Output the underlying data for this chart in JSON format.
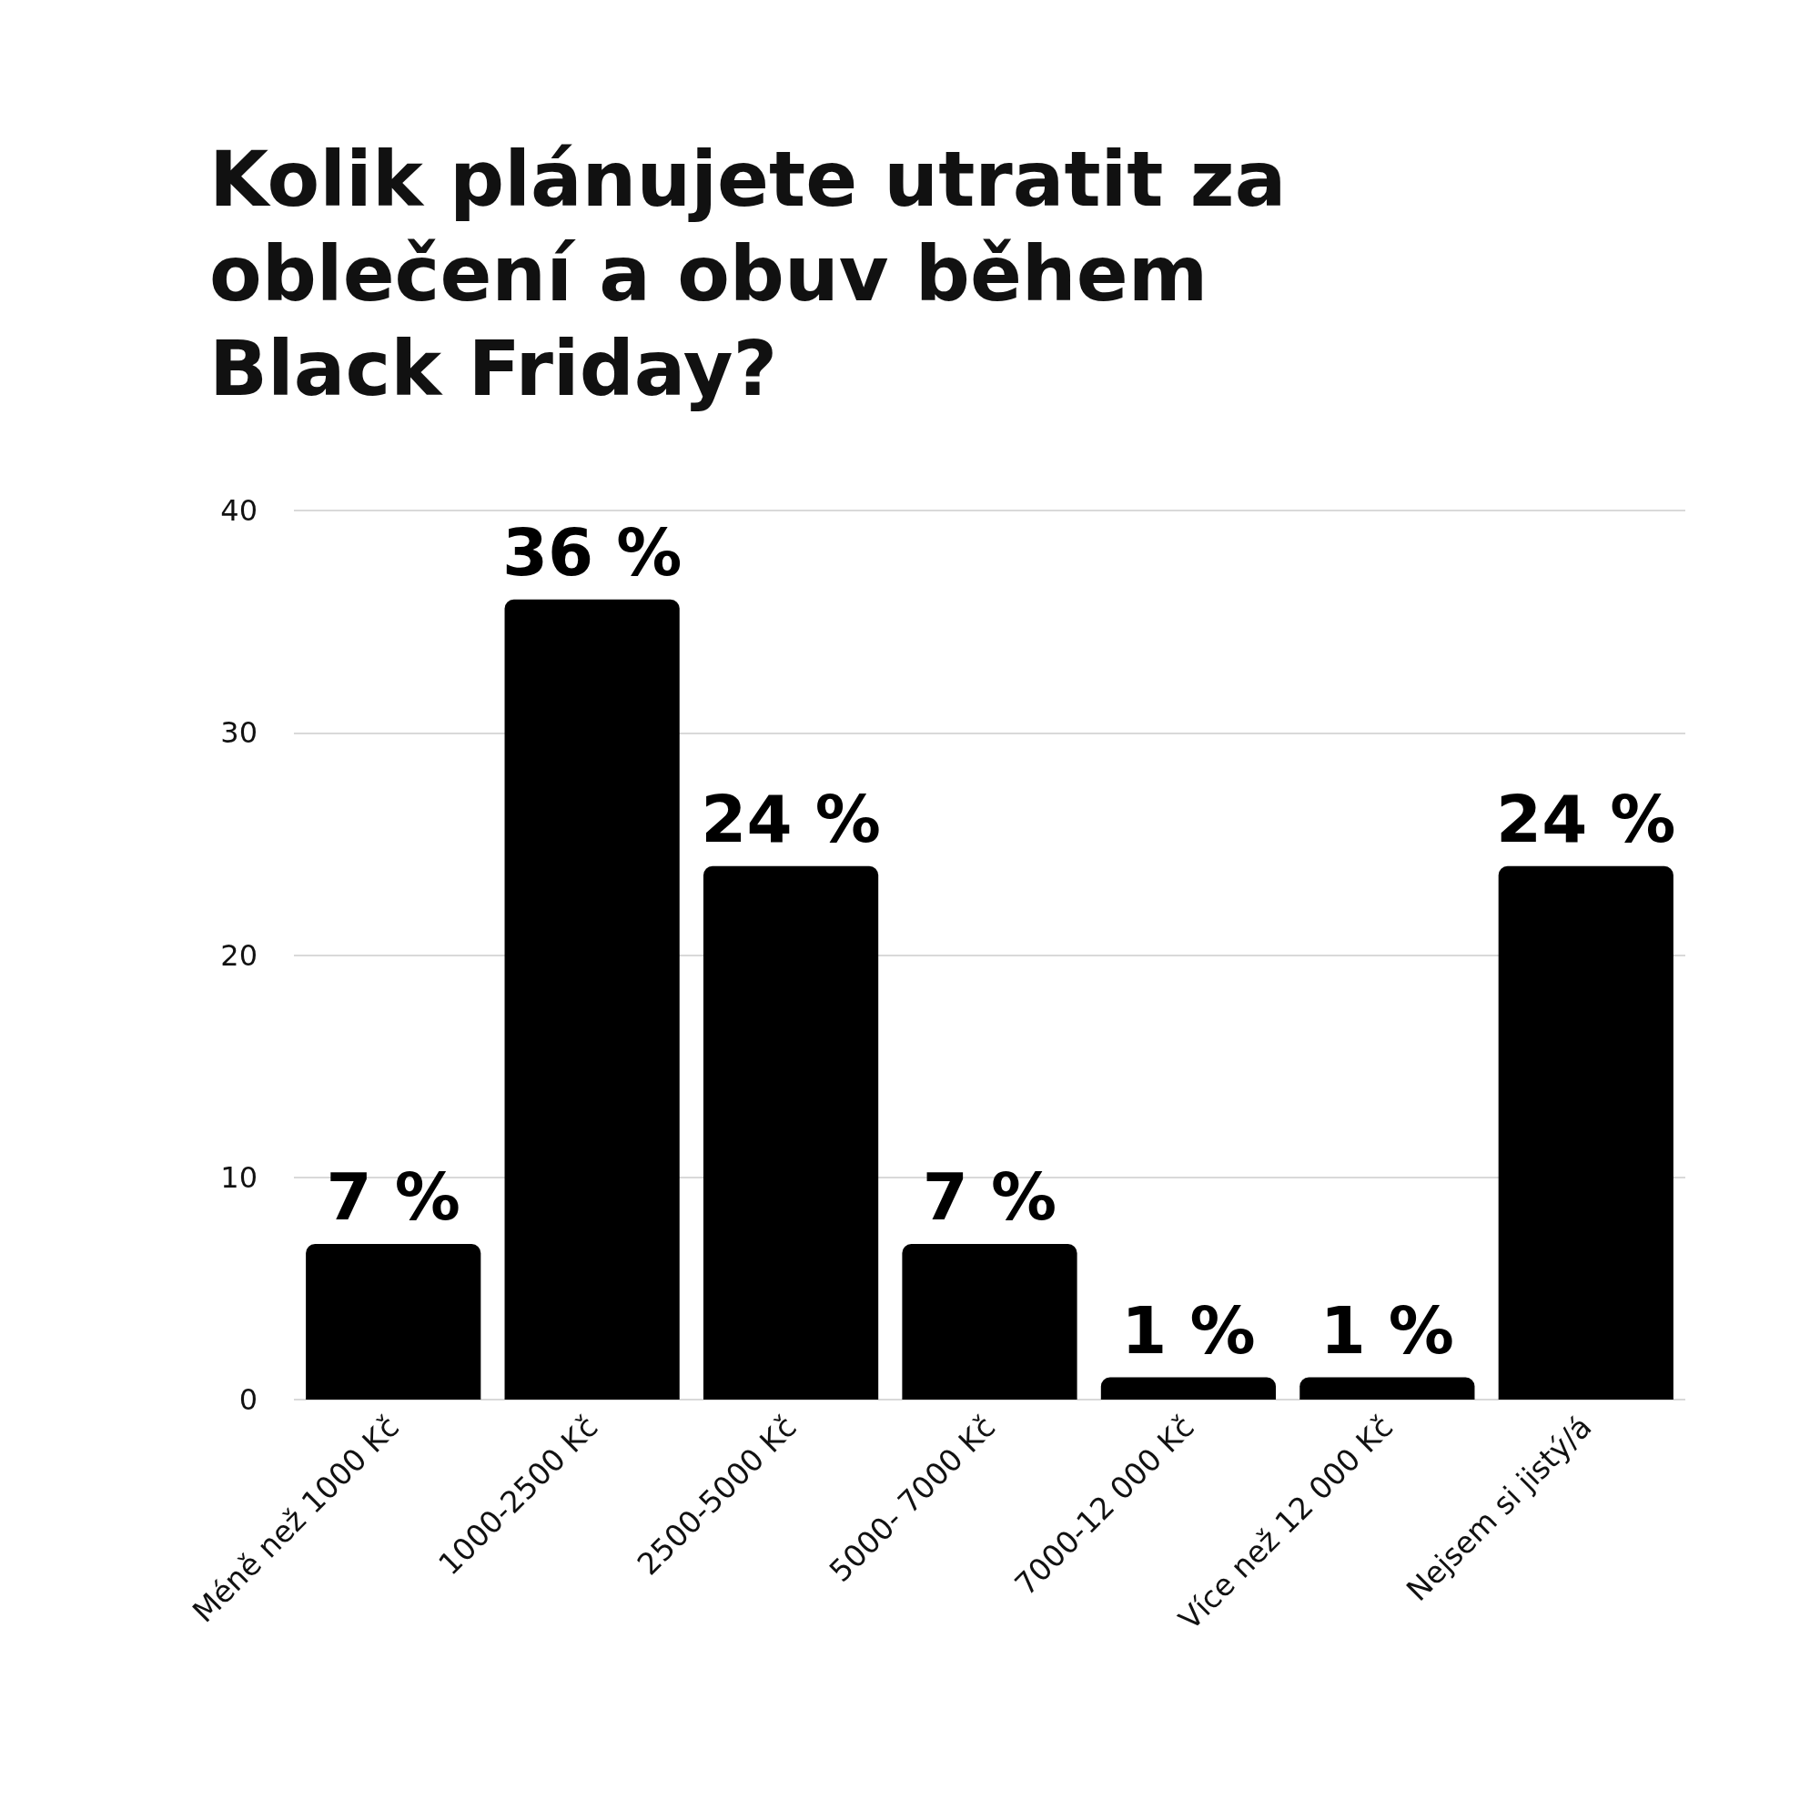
{
  "chart_data": {
    "type": "bar",
    "title": "Kolik plánujete utratit za oblečení a obuv během Black Friday?",
    "categories": [
      "Méně než 1000 Kč",
      "1000-2500 Kč",
      "2500-5000 Kč",
      "5000- 7000 Kč",
      "7000-12 000 Kč",
      "Více než 12 000 Kč",
      "Nejsem si jistý/á"
    ],
    "values": [
      7,
      36,
      24,
      7,
      1,
      1,
      24
    ],
    "value_labels": [
      "7 %",
      "36 %",
      "24 %",
      "7 %",
      "1 %",
      "1 %",
      "24 %"
    ],
    "color": "#000000",
    "ylim": [
      0,
      40
    ],
    "yticks": [
      0,
      10,
      20,
      30,
      40
    ],
    "grid": "y"
  }
}
